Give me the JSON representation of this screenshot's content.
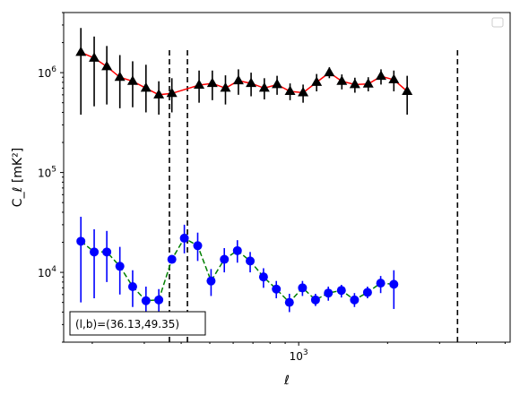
{
  "chart_data": {
    "type": "line",
    "x_scale": "log",
    "y_scale": "log",
    "xlim": [
      160,
      5200
    ],
    "ylim": [
      2000,
      4000000
    ],
    "xlabel": "ℓ",
    "ylabel": "C_ℓ  [mK²]",
    "x_tick_labels": [
      {
        "value": 1000,
        "mantissa": "10",
        "exponent": "3"
      }
    ],
    "y_tick_labels": [
      {
        "value": 10000,
        "mantissa": "10",
        "exponent": "4"
      },
      {
        "value": 100000,
        "mantissa": "10",
        "exponent": "5"
      },
      {
        "value": 1000000,
        "mantissa": "10",
        "exponent": "6"
      }
    ],
    "annotation": "(l,b)=(36.13,49.35)",
    "legend": "empty box, top-right",
    "vlines": {
      "x": [
        365,
        420,
        3450
      ],
      "ymax": 1800000,
      "style": "dashed",
      "color": "#000000"
    },
    "series": [
      {
        "color_line": "#ff0000",
        "color_marker": "#000000",
        "color_err": "#000000",
        "marker": "triangle",
        "linestyle": "solid",
        "points": [
          [
            183,
            1600000,
            380000,
            2800000
          ],
          [
            203,
            1400000,
            460000,
            2300000
          ],
          [
            224,
            1150000,
            480000,
            1850000
          ],
          [
            248,
            900000,
            440000,
            1500000
          ],
          [
            274,
            820000,
            450000,
            1300000
          ],
          [
            304,
            700000,
            400000,
            1200000
          ],
          [
            336,
            600000,
            380000,
            820000
          ],
          [
            372,
            620000,
            400000,
            880000
          ],
          [
            460,
            750000,
            500000,
            1050000
          ],
          [
            510,
            780000,
            530000,
            1050000
          ],
          [
            565,
            700000,
            480000,
            940000
          ],
          [
            625,
            830000,
            600000,
            1080000
          ],
          [
            690,
            780000,
            580000,
            1000000
          ],
          [
            765,
            700000,
            540000,
            880000
          ],
          [
            845,
            760000,
            600000,
            930000
          ],
          [
            935,
            650000,
            530000,
            780000
          ],
          [
            1035,
            630000,
            500000,
            760000
          ],
          [
            1150,
            800000,
            650000,
            970000
          ],
          [
            1270,
            1000000,
            880000,
            1130000
          ],
          [
            1400,
            820000,
            680000,
            960000
          ],
          [
            1550,
            760000,
            630000,
            890000
          ],
          [
            1720,
            770000,
            650000,
            900000
          ],
          [
            1900,
            920000,
            760000,
            1080000
          ],
          [
            2100,
            850000,
            650000,
            1050000
          ],
          [
            2330,
            650000,
            380000,
            930000
          ]
        ]
      },
      {
        "color_line": "#008000",
        "color_marker": "#0000ff",
        "color_err": "#0000ff",
        "marker": "circle",
        "linestyle": "dashed",
        "points": [
          [
            183,
            20500,
            5000,
            36000
          ],
          [
            203,
            16000,
            5500,
            27000
          ],
          [
            224,
            16000,
            8000,
            26000
          ],
          [
            248,
            11500,
            6000,
            18000
          ],
          [
            274,
            7200,
            4500,
            10500
          ],
          [
            304,
            5200,
            3200,
            7200
          ],
          [
            336,
            5300,
            3800,
            6800
          ],
          [
            372,
            13500,
            13500,
            13500
          ],
          [
            410,
            22000,
            15500,
            30000
          ],
          [
            455,
            18500,
            13000,
            25000
          ],
          [
            505,
            8200,
            5800,
            10800
          ],
          [
            560,
            13500,
            10000,
            17500
          ],
          [
            620,
            16500,
            12500,
            21000
          ],
          [
            685,
            13000,
            10000,
            16000
          ],
          [
            760,
            9000,
            7000,
            11000
          ],
          [
            840,
            6800,
            5500,
            8200
          ],
          [
            930,
            5000,
            4000,
            6100
          ],
          [
            1030,
            7000,
            5800,
            8200
          ],
          [
            1140,
            5300,
            4600,
            6100
          ],
          [
            1260,
            6200,
            5200,
            7200
          ],
          [
            1395,
            6600,
            5600,
            7500
          ],
          [
            1545,
            5300,
            4500,
            6200
          ],
          [
            1710,
            6300,
            5500,
            7200
          ],
          [
            1895,
            7800,
            6200,
            9200
          ],
          [
            2100,
            7600,
            4300,
            10500
          ]
        ]
      }
    ]
  }
}
